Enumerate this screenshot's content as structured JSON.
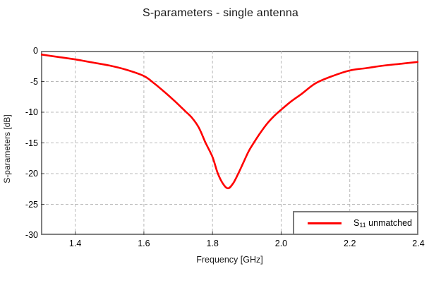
{
  "chart_data": {
    "type": "line",
    "title": "S-parameters - single antenna",
    "xlabel": "Frequency [GHz]",
    "ylabel": "S-parameters [dB]",
    "xlim": [
      1.3,
      2.4
    ],
    "ylim": [
      -30,
      0
    ],
    "x_ticks": [
      1.4,
      1.6,
      1.8,
      2.0,
      2.2,
      2.4
    ],
    "x_tick_labels": [
      "1.4",
      "1.6",
      "1.8",
      "2.0",
      "2.2",
      "2.4"
    ],
    "y_ticks": [
      0,
      -5,
      -10,
      -15,
      -20,
      -25,
      -30
    ],
    "y_tick_labels": [
      "0",
      "-5",
      "-10",
      "-15",
      "-20",
      "-25",
      "-30"
    ],
    "grid": "dashed",
    "grid_color": "#b8b8b8",
    "frame_color": "#808080",
    "legend_position": "bottom-right",
    "series": [
      {
        "name": "S11 unmatched",
        "color": "#ff0000",
        "x": [
          1.3,
          1.35,
          1.4,
          1.45,
          1.5,
          1.55,
          1.6,
          1.63,
          1.66,
          1.69,
          1.72,
          1.74,
          1.76,
          1.78,
          1.8,
          1.815,
          1.83,
          1.845,
          1.86,
          1.875,
          1.89,
          1.905,
          1.92,
          1.94,
          1.96,
          1.98,
          2.0,
          2.03,
          2.06,
          2.1,
          2.15,
          2.2,
          2.25,
          2.3,
          2.35,
          2.4
        ],
        "y": [
          -0.6,
          -1.0,
          -1.4,
          -1.9,
          -2.4,
          -3.1,
          -4.1,
          -5.3,
          -6.7,
          -8.2,
          -9.8,
          -10.9,
          -12.5,
          -15.0,
          -17.3,
          -19.9,
          -21.6,
          -22.4,
          -21.6,
          -20.0,
          -18.2,
          -16.4,
          -15.0,
          -13.3,
          -11.8,
          -10.6,
          -9.6,
          -8.2,
          -7.0,
          -5.3,
          -4.1,
          -3.2,
          -2.8,
          -2.4,
          -2.1,
          -1.8
        ]
      }
    ]
  },
  "legend": {
    "series_label_main": "S",
    "series_label_sub": "11",
    "series_label_rest": " unmatched"
  }
}
